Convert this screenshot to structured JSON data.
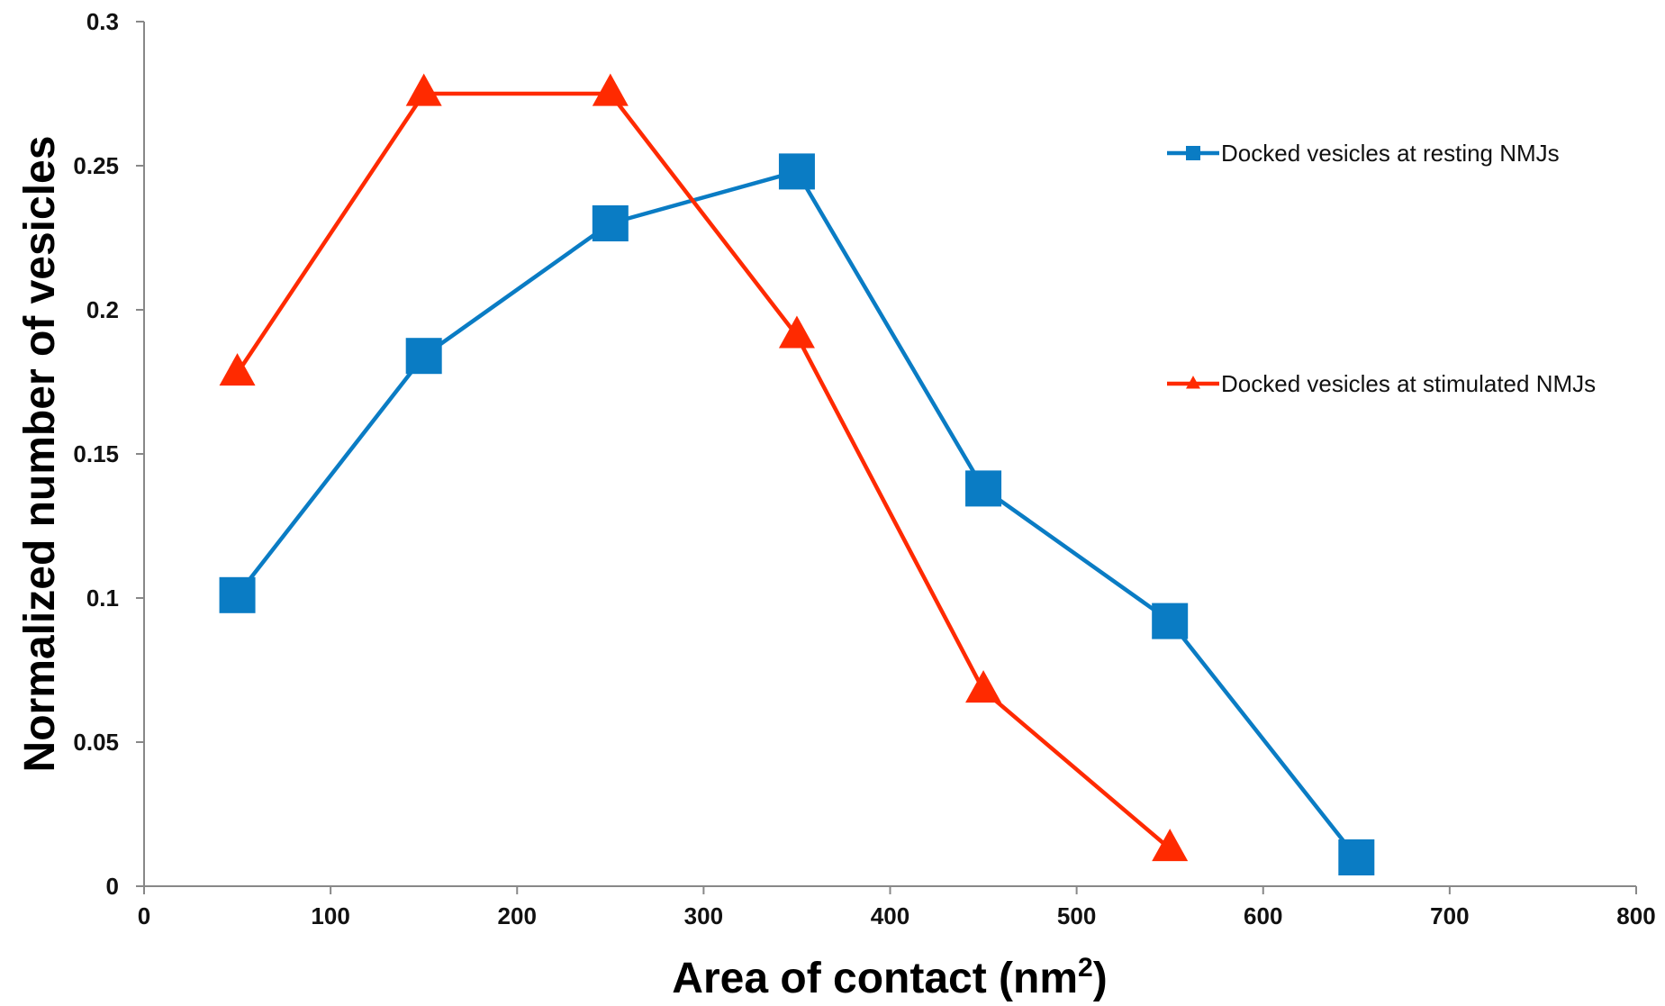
{
  "chart_data": {
    "type": "line",
    "xlabel": "Area of contact (nm",
    "xlabel_superscript": "2",
    "xlabel_suffix": ")",
    "ylabel": "Normalized number of vesicles",
    "xlim": [
      0,
      800
    ],
    "ylim": [
      0,
      0.3
    ],
    "x_ticks": [
      "0",
      "100",
      "200",
      "300",
      "400",
      "500",
      "600",
      "700",
      "800"
    ],
    "y_ticks": [
      "0",
      "0.05",
      "0.1",
      "0.15",
      "0.2",
      "0.25",
      "0.3"
    ],
    "grid": false,
    "legend_position": "right",
    "series": [
      {
        "name": "Docked vesicles at resting NMJs",
        "color": "#0a7cc4",
        "marker": "square",
        "x": [
          50,
          150,
          250,
          350,
          450,
          550,
          650
        ],
        "y": [
          0.101,
          0.184,
          0.23,
          0.248,
          0.138,
          0.092,
          0.01
        ]
      },
      {
        "name": "Docked vesicles at stimulated NMJs",
        "color": "#ff2a00",
        "marker": "triangle",
        "x": [
          50,
          150,
          250,
          350,
          450,
          550
        ],
        "y": [
          0.178,
          0.275,
          0.275,
          0.191,
          0.068,
          0.013
        ]
      }
    ]
  }
}
